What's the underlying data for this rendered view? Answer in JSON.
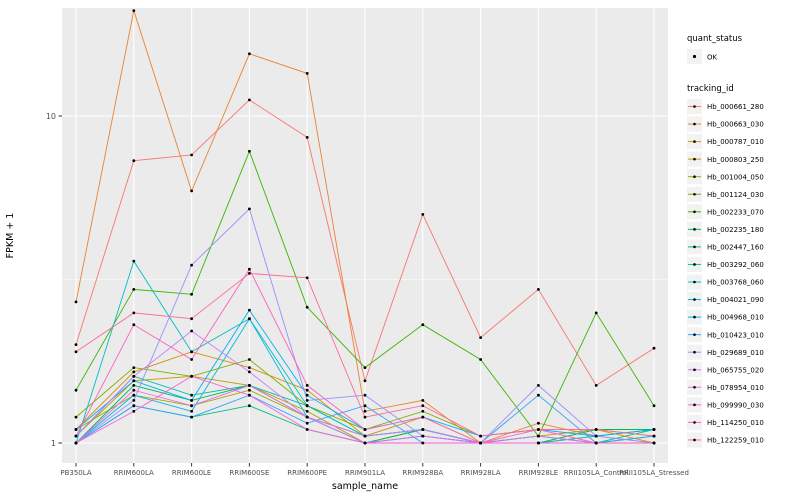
{
  "chart_data": {
    "type": "line",
    "title": "",
    "xlabel": "sample_name",
    "ylabel": "FPKM + 1",
    "yscale": "log10",
    "yticks": [
      1,
      10
    ],
    "ylim": [
      0.87,
      21.5
    ],
    "grid": true,
    "panel_background": "#EBEBEB",
    "grid_color": "#FFFFFF",
    "point_color": "#000000",
    "axis_text_color": "#4D4D4D",
    "legend_key_background": "#F2F2F2",
    "categories": [
      "PB350LA",
      "RRIM600LA",
      "RRIM600LE",
      "RRIM600SE",
      "RRIM600PE",
      "RRIM901LA",
      "RRIM928BA",
      "RRIM928LA",
      "RRIM928LE",
      "RRII105LA_Control",
      "RRII105LA_Stressed"
    ],
    "series": [
      {
        "id": "Hb_000661_280",
        "color": "#F8766D",
        "values": [
          2.0,
          7.3,
          7.6,
          11.2,
          8.6,
          1.55,
          5.0,
          2.1,
          2.95,
          1.5,
          1.95
        ]
      },
      {
        "id": "Hb_000663_030",
        "color": "#EA8331",
        "values": [
          2.7,
          21.0,
          5.9,
          15.5,
          13.5,
          1.25,
          1.35,
          1.0,
          1.15,
          1.05,
          1.1
        ]
      },
      {
        "id": "Hb_000787_010",
        "color": "#D89000",
        "values": [
          1.1,
          1.65,
          1.9,
          1.7,
          1.45,
          1.05,
          1.2,
          1.0,
          1.05,
          1.1,
          1.0
        ]
      },
      {
        "id": "Hb_000803_250",
        "color": "#C09B00",
        "values": [
          1.05,
          1.55,
          1.6,
          1.5,
          1.25,
          1.0,
          1.1,
          1.0,
          1.0,
          1.05,
          1.0
        ]
      },
      {
        "id": "Hb_001004_050",
        "color": "#A3A500",
        "values": [
          1.1,
          1.4,
          1.3,
          1.45,
          1.2,
          1.05,
          1.1,
          1.0,
          1.05,
          1.0,
          1.0
        ]
      },
      {
        "id": "Hb_001124_030",
        "color": "#7CAE00",
        "values": [
          1.2,
          1.7,
          1.6,
          1.8,
          1.3,
          1.1,
          1.25,
          1.05,
          1.1,
          1.1,
          1.05
        ]
      },
      {
        "id": "Hb_002233_070",
        "color": "#39B600",
        "values": [
          1.45,
          2.95,
          2.85,
          7.8,
          2.6,
          1.7,
          2.3,
          1.8,
          1.05,
          2.5,
          1.3
        ]
      },
      {
        "id": "Hb_002235_180",
        "color": "#00BB4E",
        "values": [
          1.0,
          1.5,
          1.35,
          1.5,
          1.2,
          1.0,
          1.1,
          1.0,
          1.0,
          1.1,
          1.1
        ]
      },
      {
        "id": "Hb_002447_160",
        "color": "#00BF7D",
        "values": [
          1.0,
          1.3,
          1.2,
          1.3,
          1.1,
          1.0,
          1.05,
          1.0,
          1.0,
          1.0,
          1.1
        ]
      },
      {
        "id": "Hb_003292_060",
        "color": "#00C1A3",
        "values": [
          1.05,
          1.6,
          1.4,
          1.5,
          1.3,
          1.05,
          1.1,
          1.0,
          1.05,
          1.0,
          1.05
        ]
      },
      {
        "id": "Hb_003768_060",
        "color": "#00BFC4",
        "values": [
          1.0,
          3.6,
          1.9,
          2.4,
          1.3,
          1.05,
          1.1,
          1.0,
          1.0,
          1.05,
          1.1
        ]
      },
      {
        "id": "Hb_004021_090",
        "color": "#00BAE0",
        "values": [
          1.0,
          1.4,
          1.25,
          2.4,
          1.2,
          1.0,
          1.05,
          1.0,
          1.0,
          1.0,
          1.0
        ]
      },
      {
        "id": "Hb_004968_010",
        "color": "#00B0F6",
        "values": [
          1.1,
          1.55,
          1.35,
          2.55,
          1.4,
          1.1,
          1.2,
          1.05,
          1.1,
          1.05,
          1.1
        ]
      },
      {
        "id": "Hb_010423_010",
        "color": "#35A2FF",
        "values": [
          1.0,
          1.3,
          1.2,
          1.4,
          1.15,
          1.3,
          1.0,
          1.0,
          1.4,
          1.0,
          1.05
        ]
      },
      {
        "id": "Hb_029689_010",
        "color": "#9590FF",
        "values": [
          1.0,
          1.35,
          3.5,
          5.2,
          1.35,
          1.4,
          1.05,
          1.0,
          1.5,
          1.05,
          1.0
        ]
      },
      {
        "id": "Hb_065755_020",
        "color": "#C77CFF",
        "values": [
          1.05,
          1.6,
          2.2,
          1.65,
          1.2,
          1.05,
          1.1,
          1.0,
          1.05,
          1.0,
          1.0
        ]
      },
      {
        "id": "Hb_078954_010",
        "color": "#E76BF3",
        "values": [
          1.0,
          1.45,
          1.3,
          1.5,
          1.2,
          1.0,
          1.05,
          1.0,
          1.0,
          1.0,
          1.0
        ]
      },
      {
        "id": "Hb_099990_030",
        "color": "#FA62DB",
        "values": [
          1.0,
          1.25,
          1.6,
          1.4,
          1.1,
          1.0,
          1.0,
          1.0,
          1.0,
          1.0,
          1.0
        ]
      },
      {
        "id": "Hb_114250_010",
        "color": "#FF62BC",
        "values": [
          1.05,
          2.3,
          1.8,
          3.4,
          1.5,
          1.1,
          1.2,
          1.0,
          1.1,
          1.0,
          1.0
        ]
      },
      {
        "id": "Hb_122259_010",
        "color": "#FF6A98",
        "values": [
          1.9,
          2.5,
          2.4,
          3.3,
          3.2,
          1.2,
          1.3,
          1.05,
          1.1,
          1.1,
          1.05
        ]
      }
    ],
    "legend": {
      "quant_status": {
        "title": "quant_status",
        "items": [
          {
            "label": "OK",
            "symbol": "point",
            "color": "#000000"
          }
        ]
      },
      "tracking_id": {
        "title": "tracking_id"
      },
      "position": "right"
    }
  }
}
